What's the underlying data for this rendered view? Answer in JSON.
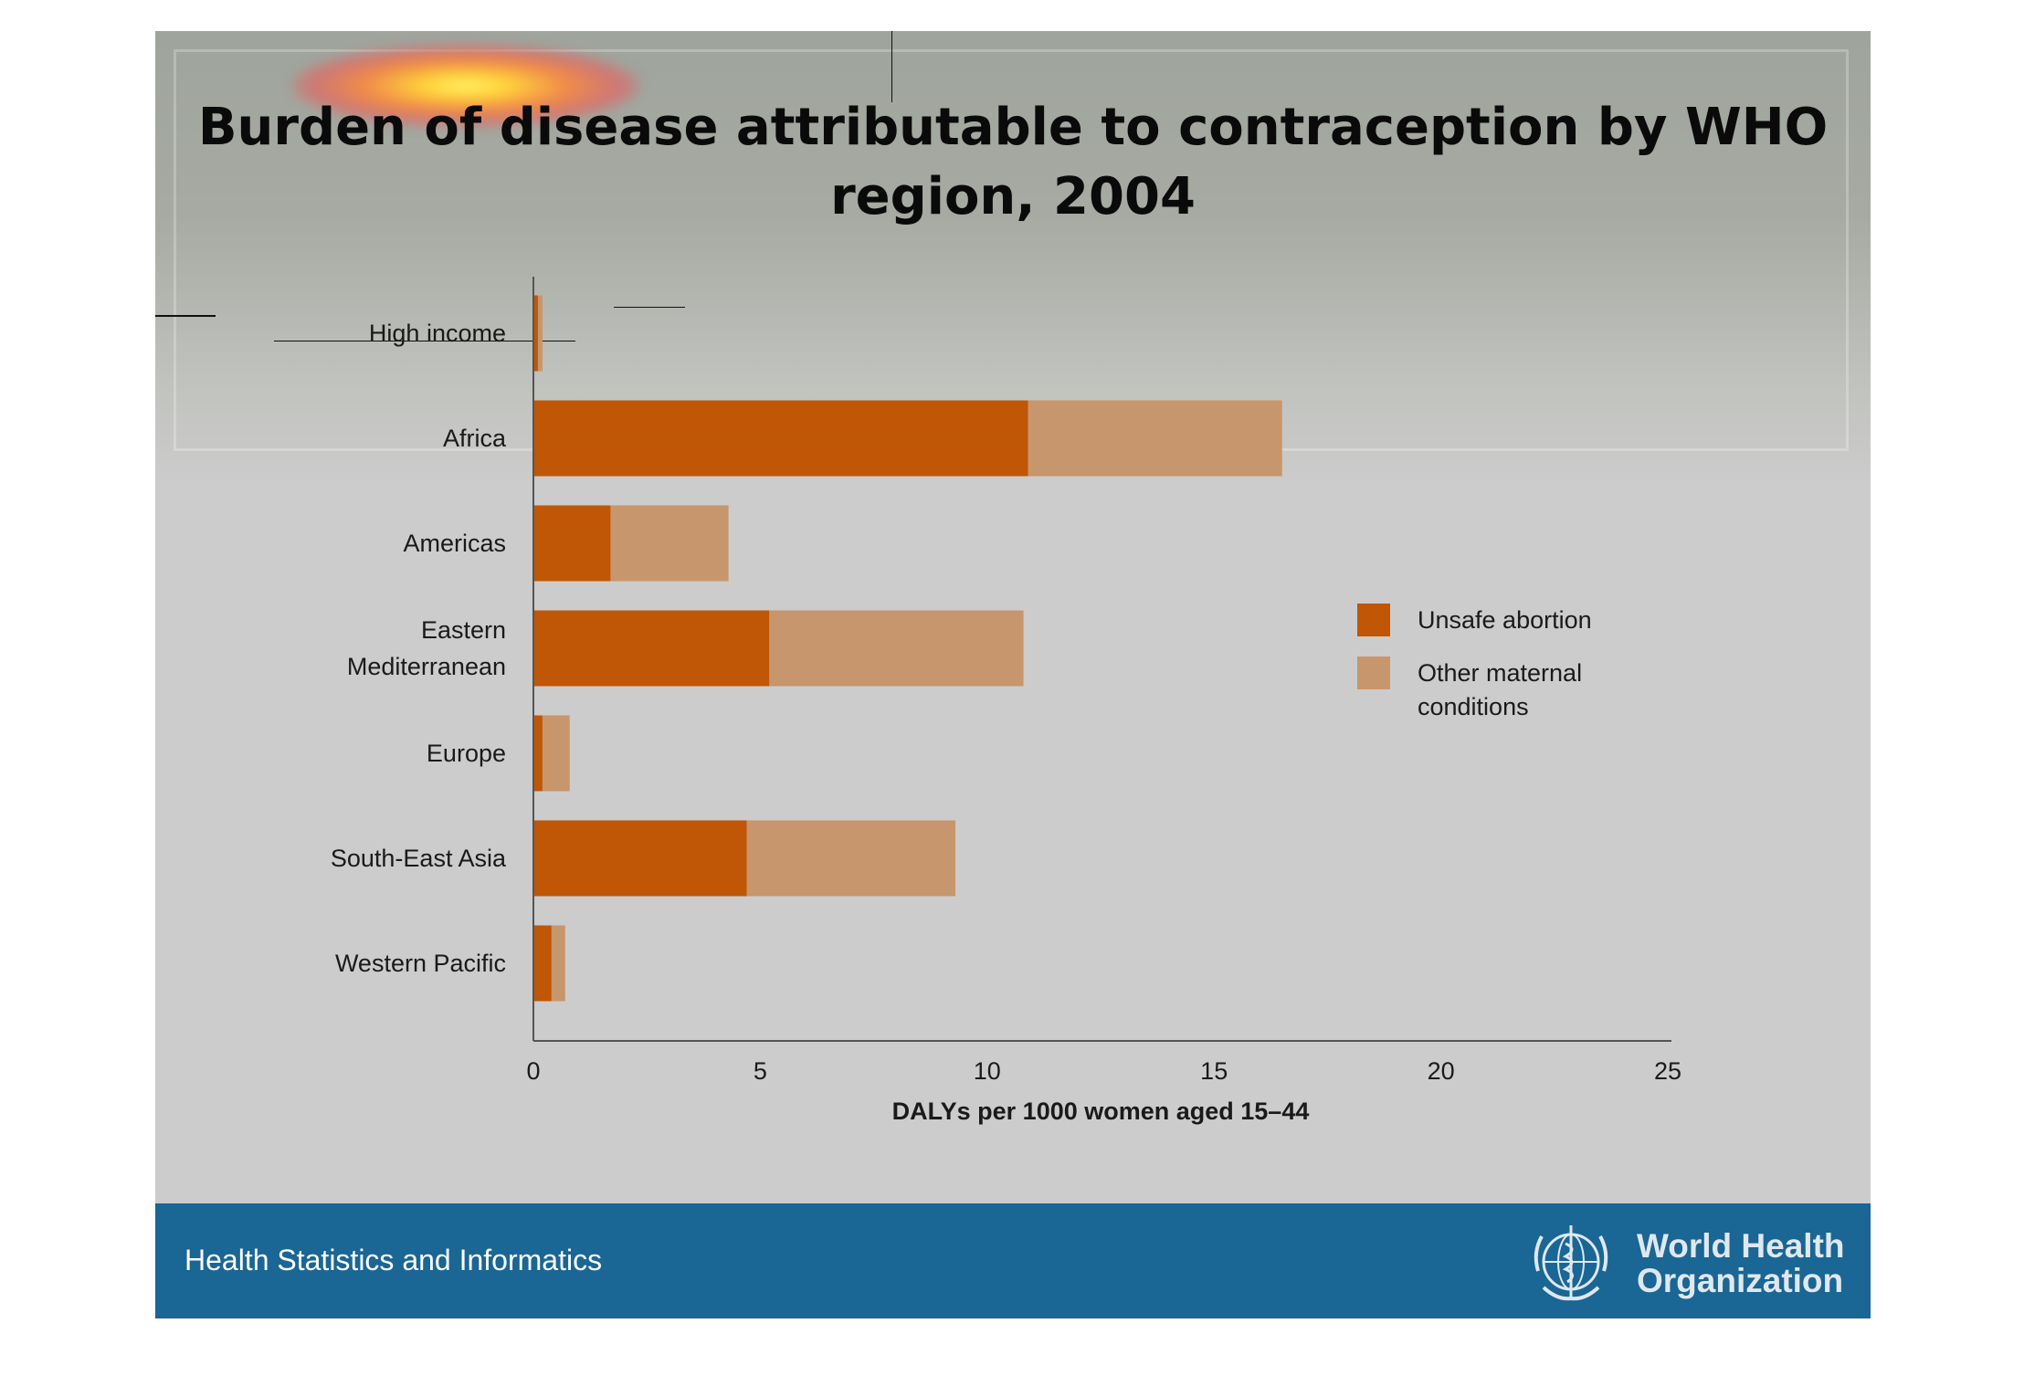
{
  "title": "Burden of disease attributable to contraception by WHO region, 2004",
  "footer": {
    "left_text": "Health Statistics and Informatics",
    "org_name_line1": "World Health",
    "org_name_line2": "Organization",
    "org_emblem_icon": "who-emblem-icon"
  },
  "colors": {
    "unsafe_abortion": "#bf5706",
    "other_maternal": "#c8966c",
    "footer_bg": "#1a6694"
  },
  "chart_data": {
    "type": "bar",
    "orientation": "horizontal",
    "stacked": true,
    "categories": [
      "High income",
      "Africa",
      "Americas",
      "Eastern Mediterranean",
      "Europe",
      "South-East Asia",
      "Western Pacific"
    ],
    "category_label_lines": [
      [
        "High income"
      ],
      [
        "Africa"
      ],
      [
        "Americas"
      ],
      [
        "Eastern",
        "Mediterranean"
      ],
      [
        "Europe"
      ],
      [
        "South-East Asia"
      ],
      [
        "Western Pacific"
      ]
    ],
    "series": [
      {
        "name": "Unsafe abortion",
        "values": [
          0.1,
          10.9,
          1.7,
          5.2,
          0.2,
          4.7,
          0.4
        ]
      },
      {
        "name": "Other maternal conditions",
        "values": [
          0.1,
          5.6,
          2.6,
          5.6,
          0.6,
          4.6,
          0.3
        ]
      }
    ],
    "legend_lines": [
      [
        "Unsafe abortion"
      ],
      [
        "Other maternal",
        "conditions"
      ]
    ],
    "xlabel": "DALYs per 1000 women aged 15–44",
    "ylabel": "",
    "xlim": [
      0,
      25
    ],
    "xticks": [
      0,
      5,
      10,
      15,
      20,
      25
    ],
    "grid": false,
    "legend_position": "right"
  }
}
